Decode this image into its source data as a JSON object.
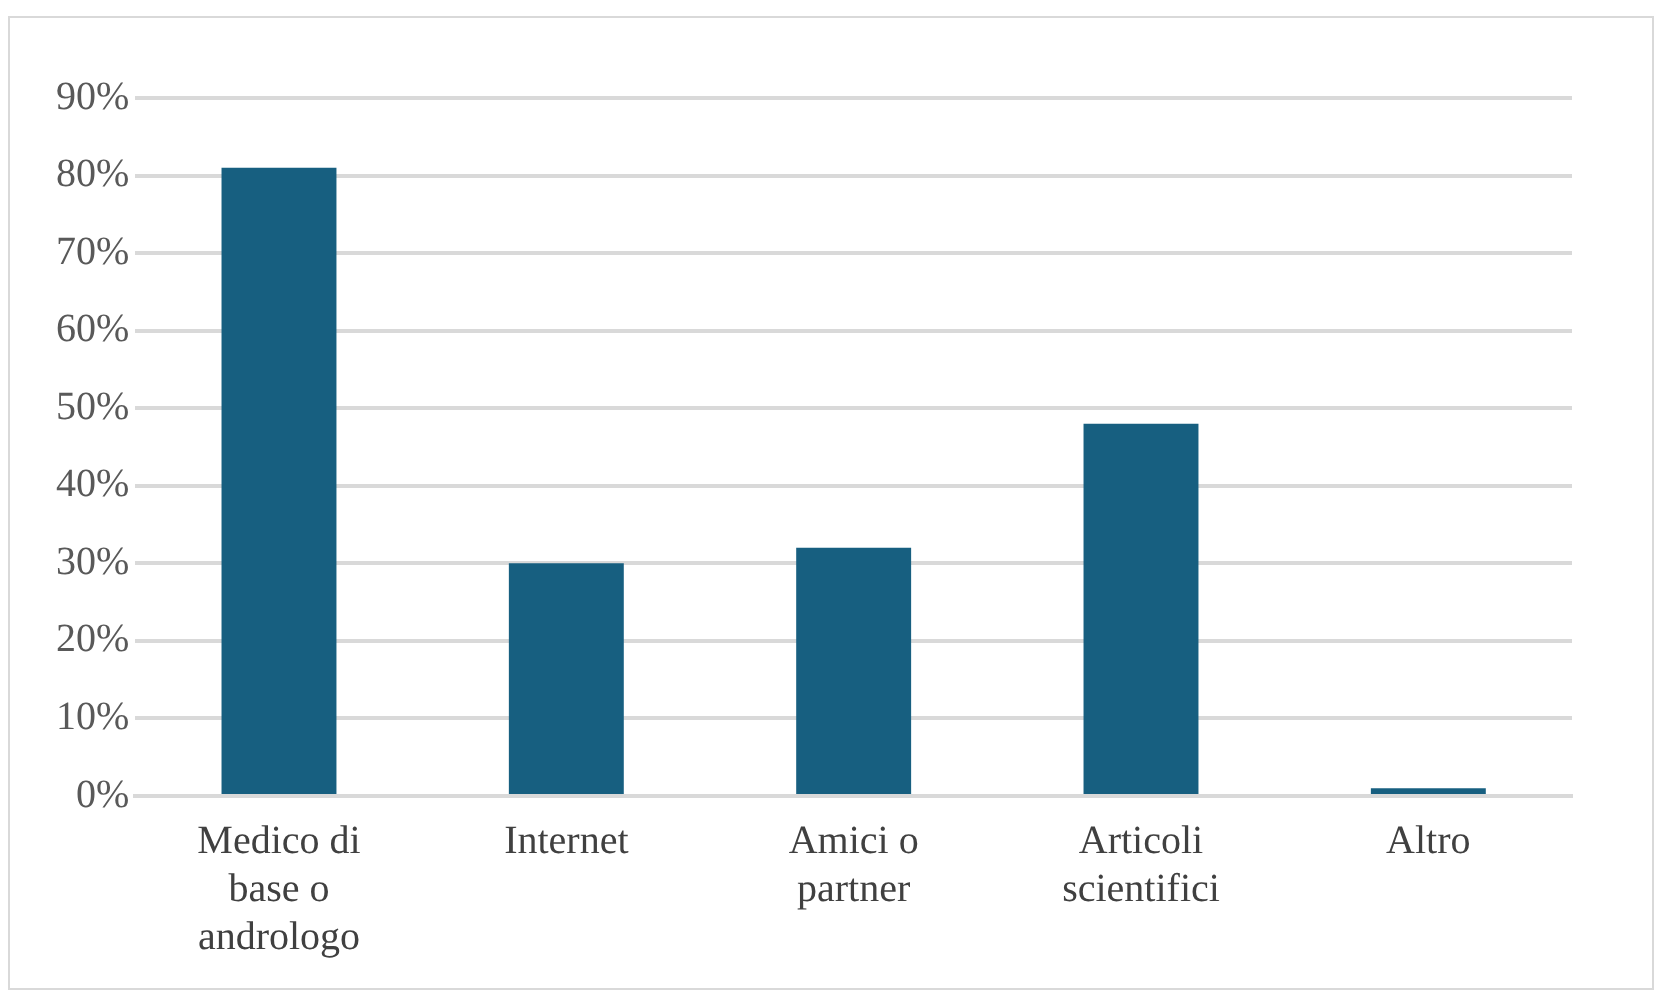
{
  "chart_data": {
    "type": "bar",
    "categories": [
      "Medico di base o andrologo",
      "Internet",
      "Amici o partner",
      "Articoli scientifici",
      "Altro"
    ],
    "values": [
      81,
      30,
      32,
      48,
      1
    ],
    "color": "#175f80",
    "ylim": [
      0,
      90
    ],
    "yticks": [
      {
        "value": 0,
        "label": "0%"
      },
      {
        "value": 10,
        "label": "10%"
      },
      {
        "value": 20,
        "label": "20%"
      },
      {
        "value": 30,
        "label": "30%"
      },
      {
        "value": 40,
        "label": "40%"
      },
      {
        "value": 50,
        "label": "50%"
      },
      {
        "value": 60,
        "label": "60%"
      },
      {
        "value": 70,
        "label": "70%"
      },
      {
        "value": 80,
        "label": "80%"
      },
      {
        "value": 90,
        "label": "90%"
      }
    ],
    "grid": "y"
  }
}
